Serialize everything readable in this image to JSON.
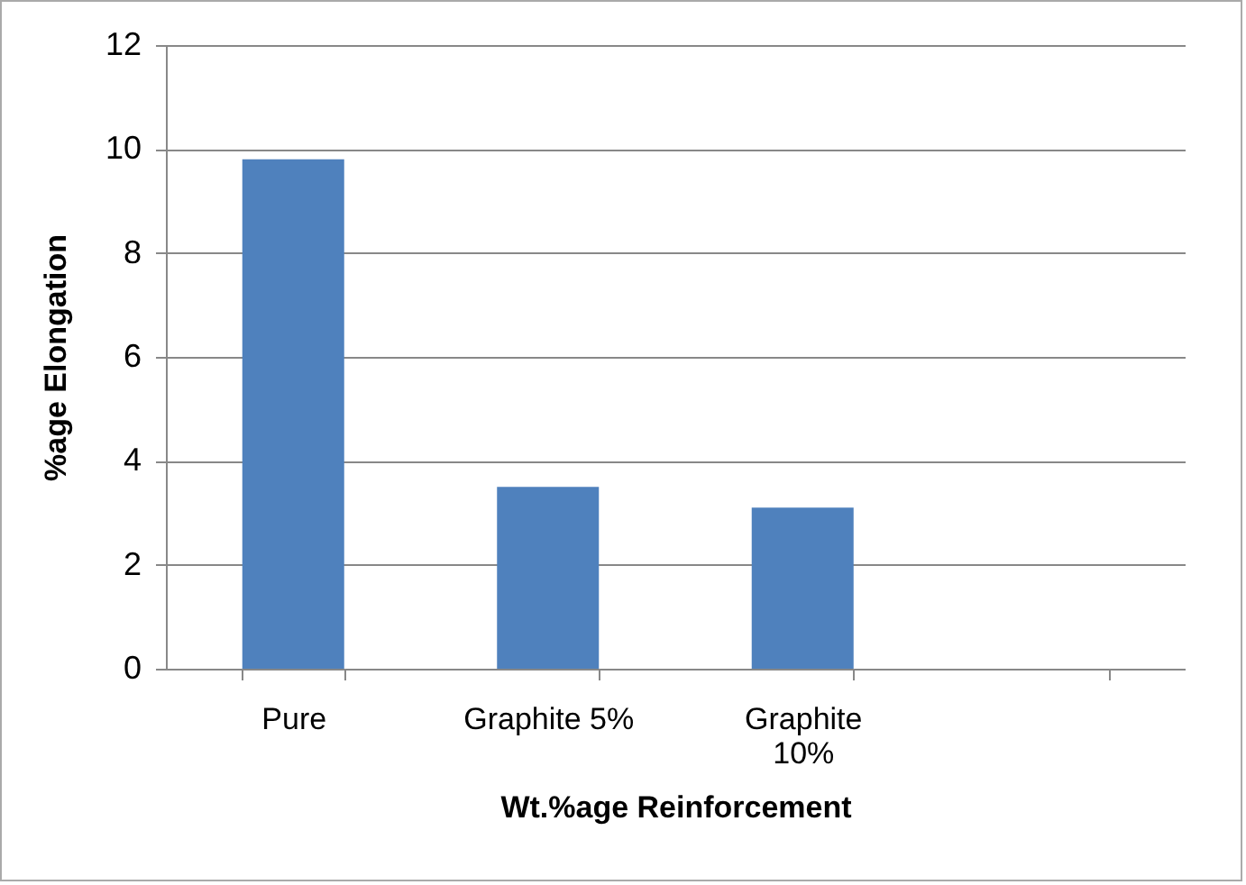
{
  "chart_data": {
    "type": "bar",
    "xlabel": "Wt.%age Reinforcement",
    "ylabel": "%age Elongation",
    "categories": [
      "Pure",
      "Graphite 5%",
      "Graphite 10%",
      null
    ],
    "values": [
      9.8,
      3.5,
      3.1,
      null
    ],
    "color": "#4f81bd",
    "ylim": [
      0,
      12
    ],
    "yticks": [
      0,
      2,
      4,
      6,
      8,
      10,
      12
    ],
    "grid": "y"
  }
}
